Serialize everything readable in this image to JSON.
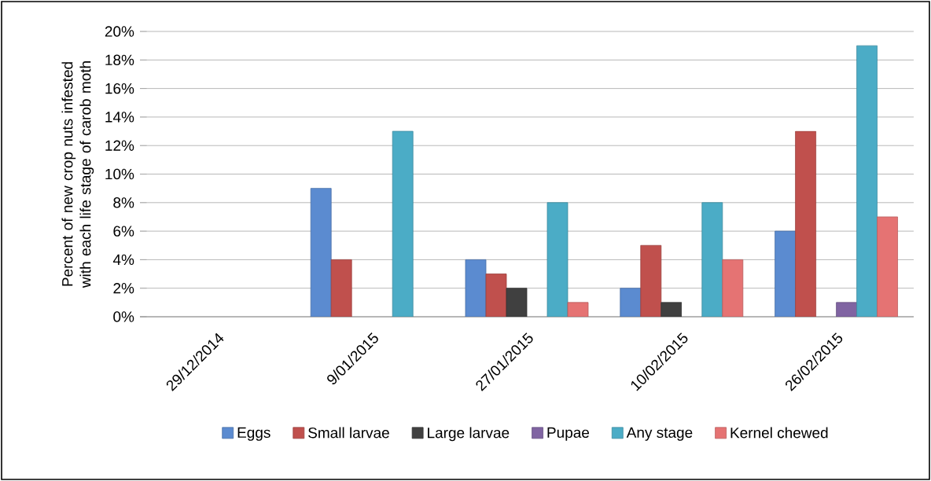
{
  "chart_data": {
    "type": "bar",
    "ylabel": "Percent of new crop nuts infested with each life stage of carob moth",
    "categories": [
      "29/12/2014",
      "9/01/2015",
      "27/01/2015",
      "10/02/2015",
      "26/02/2015"
    ],
    "series": [
      {
        "name": "Eggs",
        "color": "#5b8bd0",
        "values": [
          null,
          9,
          4,
          2,
          6
        ]
      },
      {
        "name": "Small larvae",
        "color": "#c0504d",
        "values": [
          null,
          4,
          3,
          5,
          13
        ]
      },
      {
        "name": "Large larvae",
        "color": "#404040",
        "values": [
          null,
          null,
          2,
          1,
          null
        ]
      },
      {
        "name": "Pupae",
        "color": "#8064a2",
        "values": [
          null,
          null,
          null,
          null,
          1
        ]
      },
      {
        "name": "Any stage",
        "color": "#4bacc6",
        "values": [
          null,
          13,
          8,
          8,
          19
        ]
      },
      {
        "name": "Kernel chewed",
        "color": "#e57373",
        "values": [
          null,
          null,
          1,
          4,
          7
        ]
      }
    ],
    "ylim": [
      0,
      20
    ],
    "yticks": [
      {
        "value": 0,
        "label": "0%"
      },
      {
        "value": 2,
        "label": "2%"
      },
      {
        "value": 4,
        "label": "4%"
      },
      {
        "value": 6,
        "label": "6%"
      },
      {
        "value": 8,
        "label": "8%"
      },
      {
        "value": 10,
        "label": "10%"
      },
      {
        "value": 12,
        "label": "12%"
      },
      {
        "value": 14,
        "label": "14%"
      },
      {
        "value": 16,
        "label": "16%"
      },
      {
        "value": 18,
        "label": "18%"
      },
      {
        "value": 20,
        "label": "20%"
      }
    ],
    "grid": "y",
    "legend": "bottom"
  }
}
